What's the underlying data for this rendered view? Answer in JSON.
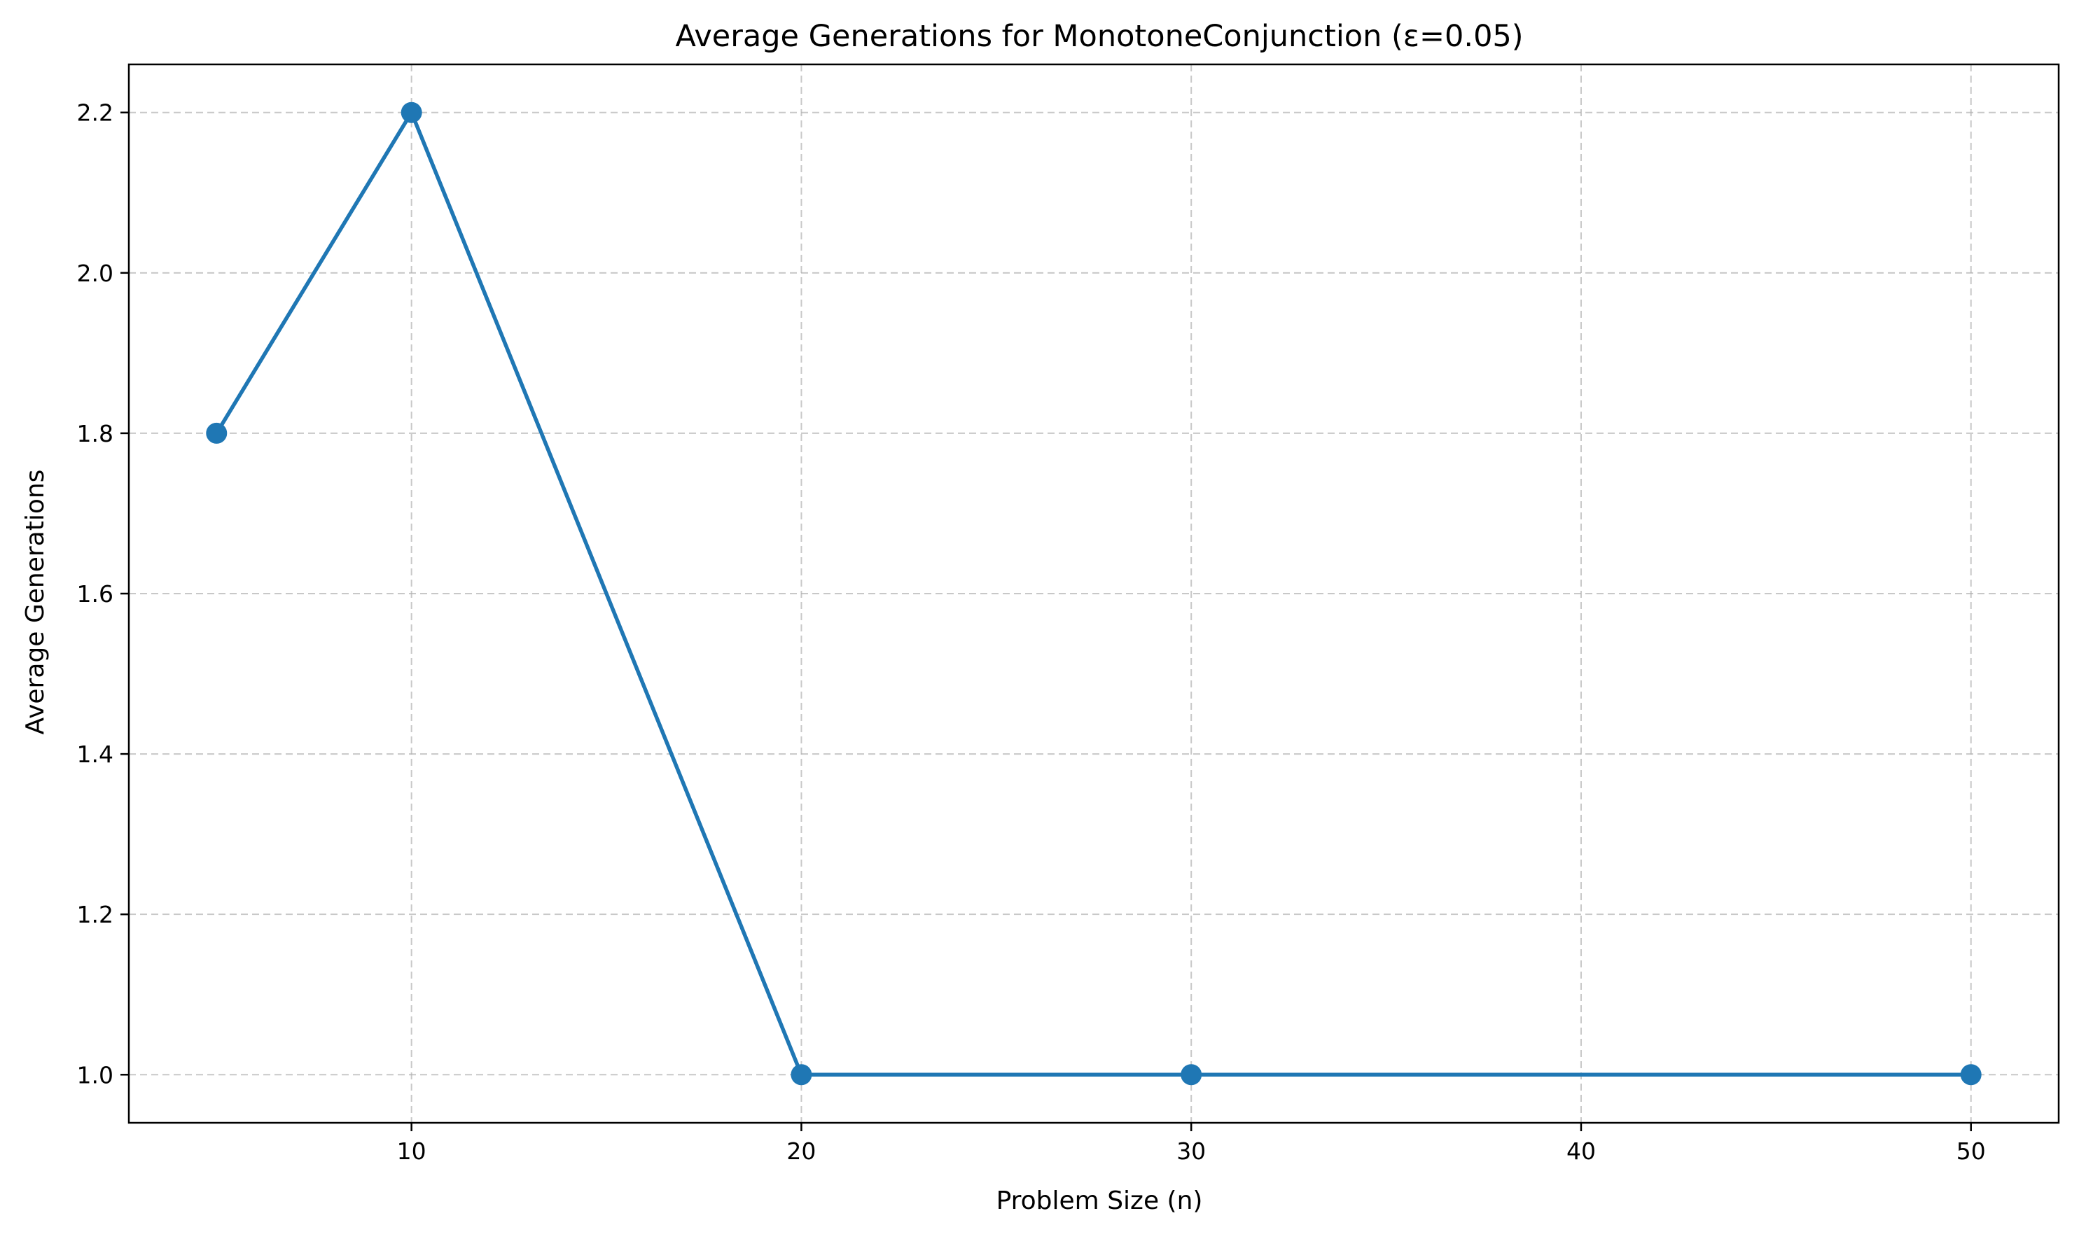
{
  "chart_data": {
    "type": "line",
    "title": "Average Generations for MonotoneConjunction (ε=0.05)",
    "xlabel": "Problem Size (n)",
    "ylabel": "Average Generations",
    "x": [
      5,
      10,
      20,
      30,
      50
    ],
    "series": [
      {
        "values": [
          1.8,
          2.2,
          1.0,
          1.0,
          1.0
        ],
        "color": "#1f77b4",
        "marker": "circle"
      }
    ],
    "xlim": [
      2.75,
      52.25
    ],
    "ylim": [
      0.94,
      2.26
    ],
    "xticks": [
      10,
      20,
      30,
      40,
      50
    ],
    "xtick_labels": [
      "10",
      "20",
      "30",
      "40",
      "50"
    ],
    "yticks": [
      1.0,
      1.2,
      1.4,
      1.6,
      1.8,
      2.0,
      2.2
    ],
    "ytick_labels": [
      "1.0",
      "1.2",
      "1.4",
      "1.6",
      "1.8",
      "2.0",
      "2.2"
    ],
    "grid": true,
    "grid_style": "dashed",
    "legend": false
  }
}
